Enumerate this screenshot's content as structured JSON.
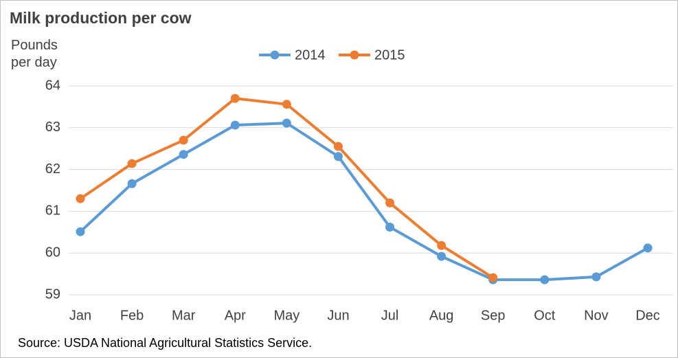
{
  "chart_data": {
    "type": "line",
    "title": "Milk production per cow",
    "y_label": "Pounds per day",
    "source": "Source: USDA National Agricultural Statistics Service.",
    "categories": [
      "Jan",
      "Feb",
      "Mar",
      "Apr",
      "May",
      "Jun",
      "Jul",
      "Aug",
      "Sep",
      "Oct",
      "Nov",
      "Dec"
    ],
    "series": [
      {
        "name": "2014",
        "color": "#5b9bd5",
        "values": [
          60.51,
          61.66,
          62.36,
          63.06,
          63.11,
          62.31,
          60.62,
          59.92,
          59.36,
          59.36,
          59.43,
          60.12
        ]
      },
      {
        "name": "2015",
        "color": "#ed7d31",
        "values": [
          61.3,
          62.14,
          62.7,
          63.7,
          63.56,
          62.55,
          61.2,
          60.18,
          59.41,
          null,
          null,
          null
        ]
      }
    ],
    "ylim": [
      59,
      64
    ],
    "yticks": [
      59,
      60,
      61,
      62,
      63,
      64
    ],
    "grid": true,
    "legend": "top"
  }
}
